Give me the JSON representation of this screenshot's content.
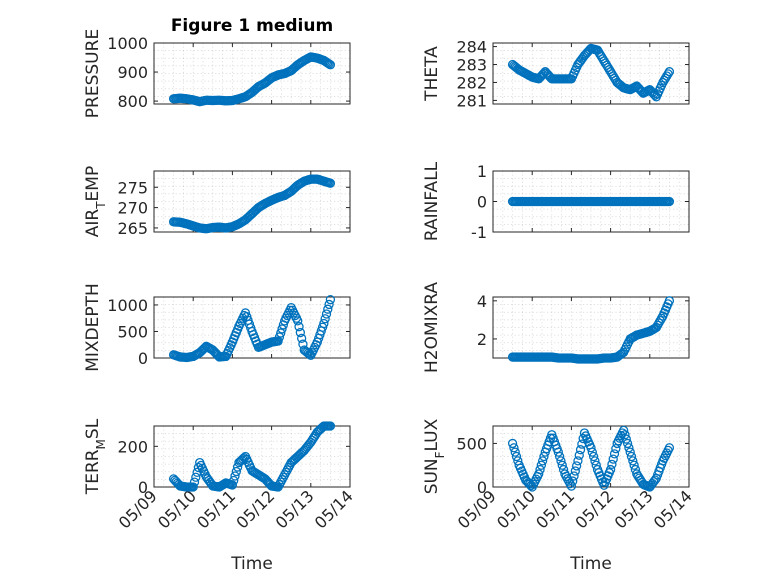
{
  "colors": {
    "marker": "#0072BD",
    "axis": "#262626",
    "background": "#ffffff"
  },
  "chart_data": [
    {
      "type": "scatter",
      "marker": "circle",
      "title": "Figure 1 medium",
      "xlabel": "",
      "ylabel": "PRESSURE",
      "xlim": [
        "05/09",
        "05/14"
      ],
      "ylim": [
        790,
        1000
      ],
      "yticks": [
        "800",
        "900",
        "1000"
      ],
      "xticks": [
        "05/09",
        "05/10",
        "05/11",
        "05/12",
        "05/13",
        "05/14"
      ],
      "show_xtick_labels": false,
      "grid": true,
      "minor_grid": true,
      "x": [
        "05/09 12:00",
        "05/09 16:00",
        "05/09 20:00",
        "05/10 00:00",
        "05/10 04:00",
        "05/10 08:00",
        "05/10 12:00",
        "05/10 16:00",
        "05/10 20:00",
        "05/11 00:00",
        "05/11 04:00",
        "05/11 08:00",
        "05/11 12:00",
        "05/11 16:00",
        "05/11 20:00",
        "05/12 00:00",
        "05/12 04:00",
        "05/12 08:00",
        "05/12 12:00",
        "05/12 16:00",
        "05/12 20:00",
        "05/13 00:00",
        "05/13 04:00",
        "05/13 08:00",
        "05/13 12:00"
      ],
      "series": [
        {
          "values": [
            808,
            810,
            808,
            804,
            798,
            803,
            802,
            803,
            801,
            802,
            808,
            815,
            830,
            850,
            862,
            880,
            890,
            895,
            905,
            925,
            940,
            952,
            948,
            940,
            925
          ]
        }
      ]
    },
    {
      "type": "scatter",
      "marker": "circle",
      "title": "",
      "xlabel": "",
      "ylabel": "THETA",
      "xlim": [
        "05/09",
        "05/14"
      ],
      "ylim": [
        280.8,
        284.2
      ],
      "yticks": [
        "281",
        "282",
        "283",
        "284"
      ],
      "xticks": [
        "05/09",
        "05/10",
        "05/11",
        "05/12",
        "05/13",
        "05/14"
      ],
      "show_xtick_labels": false,
      "grid": true,
      "minor_grid": true,
      "x": [
        "05/09 12:00",
        "05/09 16:00",
        "05/09 20:00",
        "05/10 00:00",
        "05/10 04:00",
        "05/10 08:00",
        "05/10 12:00",
        "05/10 16:00",
        "05/10 20:00",
        "05/11 00:00",
        "05/11 04:00",
        "05/11 08:00",
        "05/11 12:00",
        "05/11 16:00",
        "05/11 20:00",
        "05/12 00:00",
        "05/12 04:00",
        "05/12 08:00",
        "05/12 12:00",
        "05/12 16:00",
        "05/12 20:00",
        "05/13 00:00",
        "05/13 04:00",
        "05/13 08:00",
        "05/13 12:00"
      ],
      "series": [
        {
          "values": [
            283,
            282.7,
            282.5,
            282.3,
            282.2,
            282.6,
            282.2,
            282.2,
            282.2,
            282.2,
            283,
            283.5,
            283.9,
            283.8,
            283.2,
            282.6,
            282,
            281.7,
            281.6,
            281.8,
            281.4,
            281.6,
            281.2,
            282,
            282.6
          ]
        }
      ]
    },
    {
      "type": "scatter",
      "marker": "circle",
      "title": "",
      "xlabel": "",
      "ylabel": "AIR_TEMP",
      "xlim": [
        "05/09",
        "05/14"
      ],
      "ylim": [
        264,
        279
      ],
      "yticks": [
        "265",
        "270",
        "275"
      ],
      "xticks": [
        "05/09",
        "05/10",
        "05/11",
        "05/12",
        "05/13",
        "05/14"
      ],
      "show_xtick_labels": false,
      "grid": true,
      "minor_grid": true,
      "x": [
        "05/09 12:00",
        "05/09 16:00",
        "05/09 20:00",
        "05/10 00:00",
        "05/10 04:00",
        "05/10 08:00",
        "05/10 12:00",
        "05/10 16:00",
        "05/10 20:00",
        "05/11 00:00",
        "05/11 04:00",
        "05/11 08:00",
        "05/11 12:00",
        "05/11 16:00",
        "05/11 20:00",
        "05/12 00:00",
        "05/12 04:00",
        "05/12 08:00",
        "05/12 12:00",
        "05/12 16:00",
        "05/12 20:00",
        "05/13 00:00",
        "05/13 04:00",
        "05/13 08:00",
        "05/13 12:00"
      ],
      "series": [
        {
          "values": [
            266.5,
            266.4,
            266,
            265.5,
            265,
            264.8,
            265.1,
            265.2,
            265,
            265.3,
            266,
            267,
            268.5,
            270,
            271,
            271.8,
            272.5,
            273,
            274,
            275.5,
            276.5,
            277,
            277,
            276.5,
            276
          ]
        }
      ]
    },
    {
      "type": "scatter",
      "marker": "circle",
      "title": "",
      "xlabel": "",
      "ylabel": "RAINFALL",
      "xlim": [
        "05/09",
        "05/14"
      ],
      "ylim": [
        -1,
        1
      ],
      "yticks": [
        "-1",
        "0",
        "1"
      ],
      "xticks": [
        "05/09",
        "05/10",
        "05/11",
        "05/12",
        "05/13",
        "05/14"
      ],
      "show_xtick_labels": false,
      "grid": true,
      "minor_grid": true,
      "x": [
        "05/09 12:00",
        "05/09 16:00",
        "05/09 20:00",
        "05/10 00:00",
        "05/10 04:00",
        "05/10 08:00",
        "05/10 12:00",
        "05/10 16:00",
        "05/10 20:00",
        "05/11 00:00",
        "05/11 04:00",
        "05/11 08:00",
        "05/11 12:00",
        "05/11 16:00",
        "05/11 20:00",
        "05/12 00:00",
        "05/12 04:00",
        "05/12 08:00",
        "05/12 12:00",
        "05/12 16:00",
        "05/12 20:00",
        "05/13 00:00",
        "05/13 04:00",
        "05/13 08:00",
        "05/13 12:00"
      ],
      "series": [
        {
          "values": [
            0,
            0,
            0,
            0,
            0,
            0,
            0,
            0,
            0,
            0,
            0,
            0,
            0,
            0,
            0,
            0,
            0,
            0,
            0,
            0,
            0,
            0,
            0,
            0,
            0
          ]
        }
      ]
    },
    {
      "type": "scatter",
      "marker": "circle",
      "title": "",
      "xlabel": "",
      "ylabel": "MIXDEPTH",
      "xlim": [
        "05/09",
        "05/14"
      ],
      "ylim": [
        0,
        1150
      ],
      "yticks": [
        "0",
        "500",
        "1000"
      ],
      "xticks": [
        "05/09",
        "05/10",
        "05/11",
        "05/12",
        "05/13",
        "05/14"
      ],
      "show_xtick_labels": false,
      "grid": true,
      "minor_grid": true,
      "x": [
        "05/09 12:00",
        "05/09 16:00",
        "05/09 20:00",
        "05/10 00:00",
        "05/10 04:00",
        "05/10 08:00",
        "05/10 12:00",
        "05/10 16:00",
        "05/10 20:00",
        "05/11 00:00",
        "05/11 04:00",
        "05/11 08:00",
        "05/11 12:00",
        "05/11 16:00",
        "05/11 20:00",
        "05/12 00:00",
        "05/12 04:00",
        "05/12 08:00",
        "05/12 12:00",
        "05/12 16:00",
        "05/12 20:00",
        "05/13 00:00",
        "05/13 04:00",
        "05/13 08:00",
        "05/13 12:00"
      ],
      "series": [
        {
          "values": [
            60,
            20,
            10,
            30,
            100,
            220,
            150,
            20,
            30,
            300,
            600,
            850,
            500,
            200,
            250,
            300,
            320,
            700,
            950,
            700,
            150,
            50,
            300,
            650,
            1100
          ]
        }
      ]
    },
    {
      "type": "scatter",
      "marker": "circle",
      "title": "",
      "xlabel": "",
      "ylabel": "H2OMIXRA",
      "xlim": [
        "05/09",
        "05/14"
      ],
      "ylim": [
        1,
        4.2
      ],
      "yticks": [
        "2",
        "4"
      ],
      "xticks": [
        "05/09",
        "05/10",
        "05/11",
        "05/12",
        "05/13",
        "05/14"
      ],
      "show_xtick_labels": false,
      "grid": true,
      "minor_grid": true,
      "x": [
        "05/09 12:00",
        "05/09 16:00",
        "05/09 20:00",
        "05/10 00:00",
        "05/10 04:00",
        "05/10 08:00",
        "05/10 12:00",
        "05/10 16:00",
        "05/10 20:00",
        "05/11 00:00",
        "05/11 04:00",
        "05/11 08:00",
        "05/11 12:00",
        "05/11 16:00",
        "05/11 20:00",
        "05/12 00:00",
        "05/12 04:00",
        "05/12 08:00",
        "05/12 12:00",
        "05/12 16:00",
        "05/12 20:00",
        "05/13 00:00",
        "05/13 04:00",
        "05/13 08:00",
        "05/13 12:00"
      ],
      "series": [
        {
          "values": [
            1.05,
            1.05,
            1.05,
            1.05,
            1.05,
            1.05,
            1.05,
            1.0,
            1.0,
            1.0,
            0.95,
            0.95,
            0.95,
            0.95,
            1.0,
            1.0,
            1.05,
            1.3,
            2.0,
            2.2,
            2.3,
            2.4,
            2.6,
            3.2,
            4.0
          ]
        }
      ]
    },
    {
      "type": "scatter",
      "marker": "circle",
      "title": "",
      "xlabel": "Time",
      "ylabel": "TERR_MSL",
      "xlim": [
        "05/09",
        "05/14"
      ],
      "ylim": [
        0,
        300
      ],
      "yticks": [
        "0",
        "200"
      ],
      "xticks": [
        "05/09",
        "05/10",
        "05/11",
        "05/12",
        "05/13",
        "05/14"
      ],
      "show_xtick_labels": true,
      "grid": true,
      "minor_grid": true,
      "x": [
        "05/09 12:00",
        "05/09 16:00",
        "05/09 20:00",
        "05/10 00:00",
        "05/10 04:00",
        "05/10 08:00",
        "05/10 12:00",
        "05/10 16:00",
        "05/10 20:00",
        "05/11 00:00",
        "05/11 04:00",
        "05/11 08:00",
        "05/11 12:00",
        "05/11 16:00",
        "05/11 20:00",
        "05/12 00:00",
        "05/12 04:00",
        "05/12 08:00",
        "05/12 12:00",
        "05/12 16:00",
        "05/12 20:00",
        "05/13 00:00",
        "05/13 04:00",
        "05/13 08:00",
        "05/13 12:00"
      ],
      "series": [
        {
          "values": [
            40,
            5,
            0,
            0,
            120,
            50,
            5,
            0,
            20,
            10,
            120,
            150,
            80,
            60,
            40,
            5,
            0,
            60,
            120,
            150,
            180,
            220,
            270,
            300,
            300
          ]
        }
      ]
    },
    {
      "type": "scatter",
      "marker": "circle",
      "title": "",
      "xlabel": "Time",
      "ylabel": "SUN_FLUX",
      "xlim": [
        "05/09",
        "05/14"
      ],
      "ylim": [
        0,
        700
      ],
      "yticks": [
        "0",
        "500"
      ],
      "xticks": [
        "05/09",
        "05/10",
        "05/11",
        "05/12",
        "05/13",
        "05/14"
      ],
      "show_xtick_labels": true,
      "grid": true,
      "minor_grid": true,
      "x": [
        "05/09 12:00",
        "05/09 16:00",
        "05/09 20:00",
        "05/10 00:00",
        "05/10 04:00",
        "05/10 08:00",
        "05/10 12:00",
        "05/10 16:00",
        "05/10 20:00",
        "05/11 00:00",
        "05/11 04:00",
        "05/11 08:00",
        "05/11 12:00",
        "05/11 16:00",
        "05/11 20:00",
        "05/12 00:00",
        "05/12 04:00",
        "05/12 08:00",
        "05/12 12:00",
        "05/12 16:00",
        "05/12 20:00",
        "05/13 00:00",
        "05/13 04:00",
        "05/13 08:00",
        "05/13 12:00"
      ],
      "series": [
        {
          "values": [
            500,
            250,
            80,
            0,
            150,
            400,
            600,
            400,
            150,
            10,
            300,
            620,
            450,
            200,
            20,
            200,
            500,
            650,
            400,
            150,
            30,
            0,
            100,
            300,
            450
          ]
        }
      ]
    }
  ]
}
